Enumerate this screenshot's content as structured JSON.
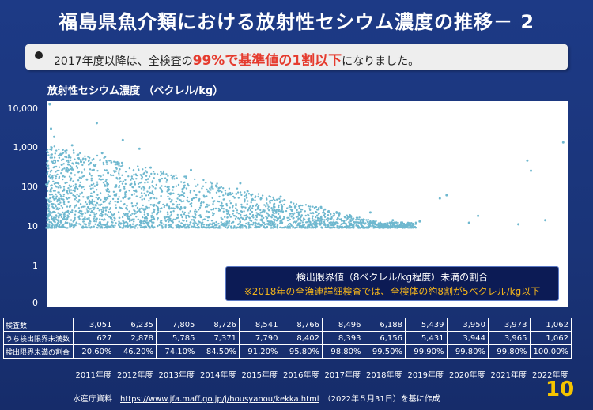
{
  "title": "福島県魚介類における放射性セシウム濃度の推移－ 2",
  "note": {
    "pre": "2017年度以降は、全検査の",
    "highlight": "99%で基準値の1割以下",
    "post": "になりました。"
  },
  "unit_label": "放射性セシウム濃度 （ベクレル/kg）",
  "callout": {
    "line1": "検出限界値（8ベクレル/kg程度）未満の割合",
    "line2": "※2018年の全漁連詳細検査では、全検体の約8割が5ベクレル/kg以下",
    "line2_color": "#f3b41b"
  },
  "chart_data": {
    "type": "scatter",
    "ylabel": "放射性セシウム濃度 （ベクレル/kg）",
    "y_scale": "log",
    "y_ticks": [
      {
        "value": 10000,
        "label": "10,000"
      },
      {
        "value": 1000,
        "label": "1,000"
      },
      {
        "value": 100,
        "label": "100"
      },
      {
        "value": 10,
        "label": "10"
      },
      {
        "value": 1,
        "label": "1"
      },
      {
        "value": 0.1,
        "label": "0"
      }
    ],
    "marker_color": "#6fb8cf",
    "x_categories": [
      "2011年度",
      "2012年度",
      "2013年度",
      "2014年度",
      "2015年度",
      "2016年度",
      "2017年度",
      "2018年度",
      "2019年度",
      "2020年度",
      "2021年度",
      "2022年度"
    ],
    "points": [
      {
        "x": 2011.05,
        "y": 12000
      },
      {
        "x": 2011.08,
        "y": 2900
      },
      {
        "x": 2011.15,
        "y": 1800
      },
      {
        "x": 2011.3,
        "y": 640
      },
      {
        "x": 2011.42,
        "y": 260
      },
      {
        "x": 2011.55,
        "y": 1100
      },
      {
        "x": 2011.62,
        "y": 90
      },
      {
        "x": 2011.75,
        "y": 420
      },
      {
        "x": 2011.88,
        "y": 150
      },
      {
        "x": 2012.1,
        "y": 4000
      },
      {
        "x": 2012.22,
        "y": 700
      },
      {
        "x": 2012.35,
        "y": 220
      },
      {
        "x": 2012.5,
        "y": 60
      },
      {
        "x": 2012.68,
        "y": 1500
      },
      {
        "x": 2012.85,
        "y": 110
      },
      {
        "x": 2013.05,
        "y": 900
      },
      {
        "x": 2013.3,
        "y": 300
      },
      {
        "x": 2013.55,
        "y": 75
      },
      {
        "x": 2013.8,
        "y": 35
      },
      {
        "x": 2014.2,
        "y": 260
      },
      {
        "x": 2014.5,
        "y": 55
      },
      {
        "x": 2014.85,
        "y": 25
      },
      {
        "x": 2015.3,
        "y": 120
      },
      {
        "x": 2015.7,
        "y": 30
      },
      {
        "x": 2016.2,
        "y": 55
      },
      {
        "x": 2016.6,
        "y": 22
      },
      {
        "x": 2017.1,
        "y": 30
      },
      {
        "x": 2017.5,
        "y": 18
      },
      {
        "x": 2018.2,
        "y": 22
      },
      {
        "x": 2018.7,
        "y": 14
      },
      {
        "x": 2019.3,
        "y": 13
      },
      {
        "x": 2019.75,
        "y": 50
      },
      {
        "x": 2019.9,
        "y": 60
      },
      {
        "x": 2020.4,
        "y": 12
      },
      {
        "x": 2020.6,
        "y": 18
      },
      {
        "x": 2021.5,
        "y": 11
      },
      {
        "x": 2021.7,
        "y": 450
      },
      {
        "x": 2021.78,
        "y": 250
      },
      {
        "x": 2022.1,
        "y": 14
      },
      {
        "x": 2022.5,
        "y": 1300
      }
    ],
    "table": {
      "rows": [
        {
          "label": "検査数",
          "values": [
            "3,051",
            "6,235",
            "7,805",
            "8,726",
            "8,541",
            "8,766",
            "8,496",
            "6,188",
            "5,439",
            "3,950",
            "3,973",
            "1,062"
          ]
        },
        {
          "label": "うち検出限界未満数",
          "values": [
            "627",
            "2,878",
            "5,785",
            "7,371",
            "7,790",
            "8,402",
            "8,393",
            "6,156",
            "5,431",
            "3,944",
            "3,965",
            "1,062"
          ]
        },
        {
          "label": "検出限界未満の割合",
          "values": [
            "20.60%",
            "46.20%",
            "74.10%",
            "84.50%",
            "91.20%",
            "95.80%",
            "98.80%",
            "99.50%",
            "99.90%",
            "99.80%",
            "99.80%",
            "100.00%"
          ]
        }
      ]
    }
  },
  "source": {
    "prefix": "水産庁資料",
    "url": "https://www.jfa.maff.go.jp/j/housyanou/kekka.html",
    "suffix": "（2022年５月31日）を基に作成"
  },
  "page_number": "10"
}
